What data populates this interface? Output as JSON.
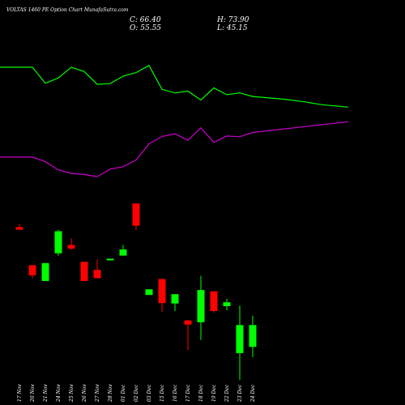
{
  "header": {
    "title": "VOLTAS 1460  PE Option  Chart MunafaSutra.com",
    "close_label": "C: 66.40",
    "open_label": "O: 55.55",
    "high_label": "H: 73.90",
    "low_label": "L: 45.15"
  },
  "colors": {
    "background": "#000000",
    "up": "#00ff00",
    "down": "#ff0000",
    "upper_band": "#00ff00",
    "lower_band": "#cc00cc",
    "text": "#ffffff"
  },
  "chart_data": {
    "type": "candlestick",
    "title": "VOLTAS 1460  PE Option  Chart MunafaSutra.com",
    "x_labels": [
      "17 Nov",
      "20 Nov",
      "21 Nov",
      "24 Nov",
      "25 Nov",
      "26 Nov",
      "27 Nov",
      "28 Nov",
      "01 Dec",
      "02 Dec",
      "03 Dec",
      "15 Dec",
      "16 Dec",
      "17 Dec",
      "18 Dec",
      "19 Dec",
      "22 Dec",
      "23 Dec",
      "24 Dec"
    ],
    "price_axis": {
      "min": 40,
      "max": 110
    },
    "candles": [
      {
        "date": "17 Nov",
        "open": 104.2,
        "high": 105.5,
        "low": 103.2,
        "close": 103.2
      },
      {
        "date": "20 Nov",
        "open": 89.5,
        "high": 89.5,
        "low": 84.5,
        "close": 85.6
      },
      {
        "date": "21 Nov",
        "open": 83.4,
        "high": 90.3,
        "low": 83.4,
        "close": 90.3
      },
      {
        "date": "24 Nov",
        "open": 94.1,
        "high": 103.1,
        "low": 93.2,
        "close": 102.6
      },
      {
        "date": "25 Nov",
        "open": 97.3,
        "high": 99.8,
        "low": 95.3,
        "close": 95.9
      },
      {
        "date": "26 Nov",
        "open": 90.8,
        "high": 90.8,
        "low": 83.4,
        "close": 83.4
      },
      {
        "date": "27 Nov",
        "open": 87.7,
        "high": 91.7,
        "low": 84.5,
        "close": 84.5
      },
      {
        "date": "28 Nov",
        "open": 91.7,
        "high": 92.0,
        "low": 91.4,
        "close": 92.0
      },
      {
        "date": "01 Dec",
        "open": 93.2,
        "high": 97.3,
        "low": 93.2,
        "close": 95.6
      },
      {
        "date": "02 Dec",
        "open": 113.3,
        "high": 113.3,
        "low": 103.1,
        "close": 104.7
      },
      {
        "date": "03 Dec",
        "open": 78.0,
        "high": 80.2,
        "low": 78.0,
        "close": 80.2
      },
      {
        "date": "15 Dec",
        "open": 84.2,
        "high": 84.2,
        "low": 71.6,
        "close": 74.9
      },
      {
        "date": "16 Dec",
        "open": 74.7,
        "high": 78.3,
        "low": 71.8,
        "close": 78.3
      },
      {
        "date": "17 Dec",
        "open": 68.2,
        "high": 68.2,
        "low": 56.8,
        "close": 66.6
      },
      {
        "date": "18 Dec",
        "open": 67.5,
        "high": 85.4,
        "low": 60.7,
        "close": 79.9
      },
      {
        "date": "19 Dec",
        "open": 79.4,
        "high": 79.4,
        "low": 71.2,
        "close": 71.8
      },
      {
        "date": "22 Dec",
        "open": 73.7,
        "high": 76.5,
        "low": 72.1,
        "close": 75.2
      },
      {
        "date": "23 Dec",
        "open": 55.6,
        "high": 73.9,
        "low": 45.2,
        "close": 66.4
      },
      {
        "date": "24 Dec",
        "open": 58.0,
        "high": 70.0,
        "low": 54.0,
        "close": 66.4
      }
    ],
    "upper_band": [
      100,
      100,
      95.5,
      97,
      100,
      98.8,
      95.2,
      95.4,
      97.5,
      98.5,
      100.5,
      93.8,
      92.8,
      93.3,
      90.8,
      94.2,
      92.3,
      92.8,
      91.8
    ],
    "lower_band": [
      74.8,
      74.8,
      73.5,
      71.2,
      70.2,
      69.9,
      69.3,
      71.4,
      72.1,
      74.0,
      78.5,
      80.6,
      81.3,
      79.5,
      83.0,
      78.9,
      80.7,
      80.5,
      81.7
    ]
  }
}
